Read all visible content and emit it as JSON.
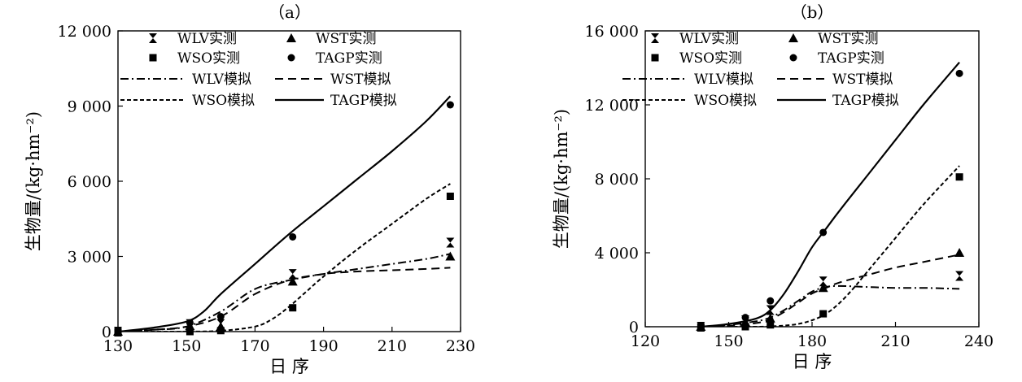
{
  "chart_data": [
    {
      "panel_label": "（a）",
      "type": "line",
      "xlabel": "日 序",
      "ylabel": "生物量/(kg·hm⁻²)",
      "xlim": [
        130,
        230
      ],
      "ylim": [
        0,
        12000
      ],
      "xticks": [
        130,
        150,
        170,
        190,
        210,
        230
      ],
      "xtick_labels": [
        "130",
        "150",
        "170",
        "190",
        "210",
        "230"
      ],
      "yticks": [
        0,
        3000,
        6000,
        9000,
        12000
      ],
      "ytick_labels": [
        "0",
        "3 000",
        "6 000",
        "9 000",
        "12 000"
      ],
      "grid": false,
      "legend": {
        "placement": "top",
        "entries": [
          "WLV实测",
          "WST实测",
          "WSO实测",
          "TAGP实测",
          "WLV模拟",
          "WST模拟",
          "WSO模拟",
          "TAGP模拟"
        ]
      },
      "observed": [
        {
          "name": "WLV实测",
          "marker": "hourglass",
          "x": [
            130,
            151,
            160,
            181,
            227
          ],
          "y": [
            0,
            300,
            300,
            2300,
            3550
          ]
        },
        {
          "name": "WST实测",
          "marker": "triangle",
          "x": [
            130,
            151,
            160,
            181,
            227
          ],
          "y": [
            0,
            220,
            200,
            2000,
            3000
          ]
        },
        {
          "name": "WSO实测",
          "marker": "square",
          "x": [
            130,
            151,
            160,
            181,
            227
          ],
          "y": [
            0,
            0,
            40,
            950,
            5400
          ]
        },
        {
          "name": "TAGP实测",
          "marker": "circle",
          "x": [
            130,
            151,
            160,
            181,
            227
          ],
          "y": [
            0,
            350,
            600,
            3780,
            9050
          ]
        }
      ],
      "simulated": [
        {
          "name": "WLV模拟",
          "style": "dashdot",
          "x": [
            130,
            140,
            150,
            160,
            170,
            180,
            190,
            200,
            210,
            220,
            227
          ],
          "y": [
            0,
            70,
            200,
            800,
            1700,
            2050,
            2300,
            2500,
            2700,
            2900,
            3100
          ]
        },
        {
          "name": "WST模拟",
          "style": "dashed",
          "x": [
            130,
            140,
            150,
            160,
            170,
            180,
            190,
            200,
            210,
            220,
            227
          ],
          "y": [
            0,
            70,
            200,
            600,
            1500,
            2050,
            2300,
            2400,
            2450,
            2500,
            2550
          ]
        },
        {
          "name": "WSO模拟",
          "style": "dotted",
          "x": [
            130,
            140,
            150,
            160,
            170,
            175,
            180,
            185,
            190,
            200,
            210,
            220,
            227
          ],
          "y": [
            0,
            0,
            0,
            30,
            200,
            500,
            1000,
            1600,
            2200,
            3300,
            4300,
            5300,
            5900
          ]
        },
        {
          "name": "TAGP模拟",
          "style": "solid",
          "x": [
            130,
            140,
            150,
            155,
            160,
            170,
            180,
            190,
            200,
            210,
            220,
            227
          ],
          "y": [
            0,
            150,
            400,
            800,
            1500,
            2700,
            3900,
            5000,
            6100,
            7200,
            8400,
            9400
          ]
        }
      ]
    },
    {
      "panel_label": "（b）",
      "type": "line",
      "xlabel": "日 序",
      "ylabel": "生物量/(kg·hm⁻²)",
      "xlim": [
        120,
        240
      ],
      "ylim": [
        0,
        16000
      ],
      "xticks": [
        120,
        150,
        180,
        210,
        240
      ],
      "xtick_labels": [
        "120",
        "150",
        "180",
        "210",
        "240"
      ],
      "yticks": [
        0,
        4000,
        8000,
        12000,
        16000
      ],
      "ytick_labels": [
        "0",
        "4 000",
        "8 000",
        "12 000",
        "16 000"
      ],
      "grid": false,
      "legend": {
        "placement": "top",
        "entries": [
          "WLV实测",
          "WST实测",
          "WSO实测",
          "TAGP实测",
          "WLV模拟",
          "WST模拟",
          "WSO模拟",
          "TAGP模拟"
        ]
      },
      "observed": [
        {
          "name": "WLV实测",
          "marker": "hourglass",
          "x": [
            140,
            156,
            165,
            184,
            233
          ],
          "y": [
            0,
            350,
            900,
            2450,
            2750
          ]
        },
        {
          "name": "WST实测",
          "marker": "triangle",
          "x": [
            140,
            156,
            165,
            184,
            233
          ],
          "y": [
            0,
            250,
            450,
            2100,
            4000
          ]
        },
        {
          "name": "WSO实测",
          "marker": "square",
          "x": [
            140,
            156,
            165,
            184,
            233
          ],
          "y": [
            0,
            0,
            100,
            700,
            8100
          ]
        },
        {
          "name": "TAGP实测",
          "marker": "circle",
          "x": [
            140,
            156,
            165,
            184,
            233
          ],
          "y": [
            0,
            500,
            1400,
            5100,
            13700
          ]
        }
      ],
      "simulated": [
        {
          "name": "WLV模拟",
          "style": "dashdot",
          "x": [
            140,
            150,
            160,
            165,
            170,
            175,
            180,
            185,
            190,
            200,
            210,
            220,
            233
          ],
          "y": [
            0,
            100,
            300,
            500,
            900,
            1400,
            1900,
            2150,
            2200,
            2150,
            2100,
            2100,
            2050
          ]
        },
        {
          "name": "WST模拟",
          "style": "dashed",
          "x": [
            140,
            150,
            160,
            165,
            170,
            175,
            180,
            185,
            190,
            200,
            210,
            220,
            233
          ],
          "y": [
            0,
            50,
            200,
            400,
            800,
            1300,
            1800,
            2100,
            2400,
            2800,
            3200,
            3500,
            3900
          ]
        },
        {
          "name": "WSO模拟",
          "style": "dotted",
          "x": [
            140,
            160,
            165,
            170,
            175,
            180,
            185,
            190,
            195,
            200,
            210,
            220,
            233
          ],
          "y": [
            0,
            0,
            20,
            60,
            150,
            350,
            700,
            1300,
            2100,
            3000,
            4800,
            6600,
            8700
          ]
        },
        {
          "name": "TAGP模拟",
          "style": "solid",
          "x": [
            140,
            150,
            160,
            165,
            170,
            175,
            180,
            185,
            190,
            200,
            210,
            220,
            233
          ],
          "y": [
            0,
            150,
            450,
            900,
            1800,
            3000,
            4300,
            5300,
            6300,
            8200,
            10100,
            12000,
            14300
          ]
        }
      ]
    }
  ]
}
